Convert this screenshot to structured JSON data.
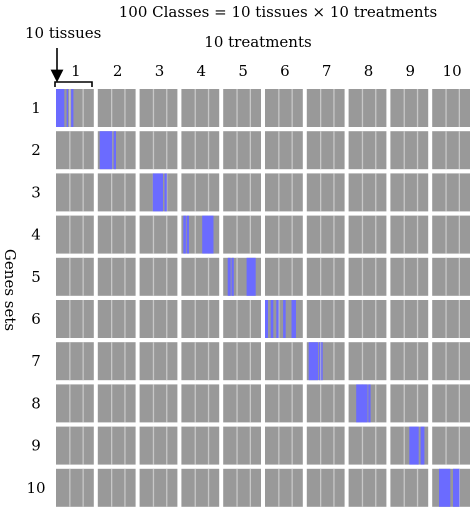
{
  "title": "100 Classes = 10 tissues × 10 treatments",
  "tissues_label": "10 tissues",
  "treatments_label": "10 treatments",
  "genes_label": "Genes sets",
  "column_labels": [
    "1",
    "2",
    "3",
    "4",
    "5",
    "6",
    "7",
    "8",
    "9",
    "10"
  ],
  "row_labels": [
    "1",
    "2",
    "3",
    "4",
    "5",
    "6",
    "7",
    "8",
    "9",
    "10"
  ],
  "colors": {
    "background": "#ffffff",
    "block": "#999999",
    "separator": "#c8c8c8",
    "highlight": "#6b6bff"
  },
  "chart_data": {
    "type": "heatmap",
    "rows": 10,
    "columns": 10,
    "highlighted_cells": [
      {
        "gene_set": "1",
        "treatment": "1"
      },
      {
        "gene_set": "2",
        "treatment": "2"
      },
      {
        "gene_set": "3",
        "treatment": "3"
      },
      {
        "gene_set": "4",
        "treatment": "4"
      },
      {
        "gene_set": "5",
        "treatment": "5"
      },
      {
        "gene_set": "6",
        "treatment": "6"
      },
      {
        "gene_set": "7",
        "treatment": "7"
      },
      {
        "gene_set": "8",
        "treatment": "8"
      },
      {
        "gene_set": "9",
        "treatment": "9"
      },
      {
        "gene_set": "10",
        "treatment": "10"
      }
    ]
  }
}
